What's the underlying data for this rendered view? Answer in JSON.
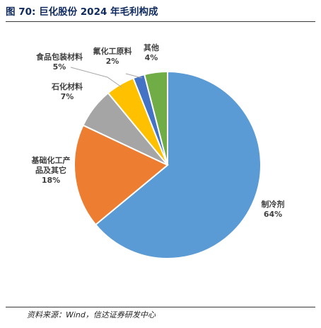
{
  "title": "图 70:  巨化股份 2024 年毛利构成",
  "source": "资料来源：Wind，信达证券研发中心",
  "chart_data": {
    "type": "pie",
    "title": "",
    "slices": [
      {
        "label_lines": [
          "制冷剂"
        ],
        "value": 64,
        "pct": "64%",
        "color": "#5b9bd5"
      },
      {
        "label_lines": [
          "基础化工产",
          "品及其它"
        ],
        "value": 18,
        "pct": "18%",
        "color": "#ed7d31"
      },
      {
        "label_lines": [
          "石化材料"
        ],
        "value": 7,
        "pct": "7%",
        "color": "#a5a5a5"
      },
      {
        "label_lines": [
          "食品包装材料"
        ],
        "value": 5,
        "pct": "5%",
        "color": "#ffc000"
      },
      {
        "label_lines": [
          "氟化工原料"
        ],
        "value": 2,
        "pct": "2%",
        "color": "#4472c4"
      },
      {
        "label_lines": [
          "其他"
        ],
        "value": 4,
        "pct": "4%",
        "color": "#70ad47"
      }
    ]
  }
}
